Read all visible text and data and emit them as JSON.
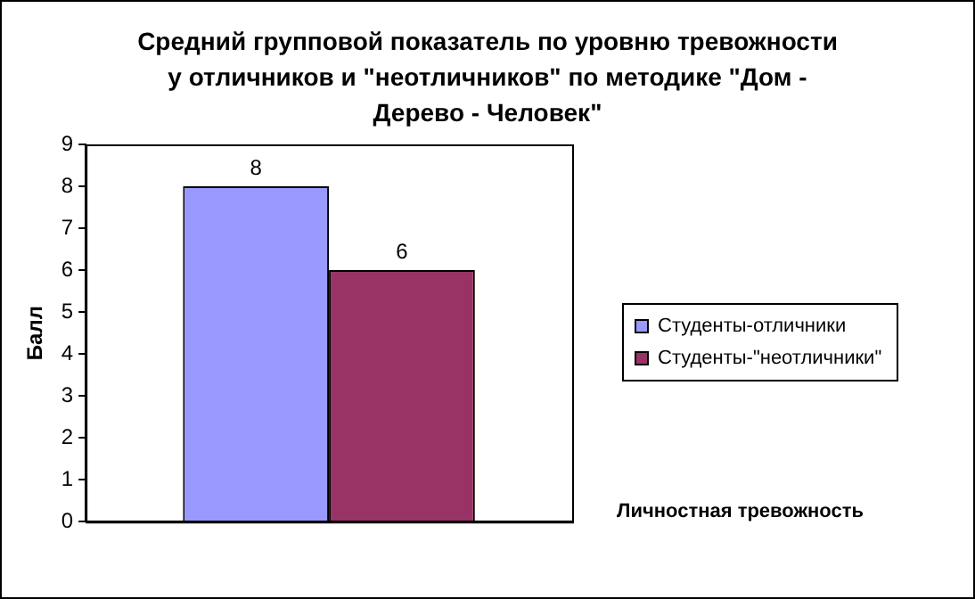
{
  "chart_data": {
    "type": "bar",
    "title": "Средний групповой показатель по уровню тревожности у отличников и \"неотличников\" по методике \"Дом - Дерево - Человек\"",
    "xlabel": "Личностная тревожность",
    "ylabel": "Балл",
    "categories": [
      null
    ],
    "series": [
      {
        "name": "Студенты-отличники",
        "color": "#9999ff",
        "values": [
          8
        ]
      },
      {
        "name": "Студенты-\"неотличники\"",
        "color": "#993366",
        "values": [
          6
        ]
      }
    ],
    "ylim": [
      0,
      9
    ],
    "yticks": [
      0,
      1,
      2,
      3,
      4,
      5,
      6,
      7,
      8,
      9
    ],
    "grid": false,
    "legend": "right",
    "data_labels": true
  }
}
